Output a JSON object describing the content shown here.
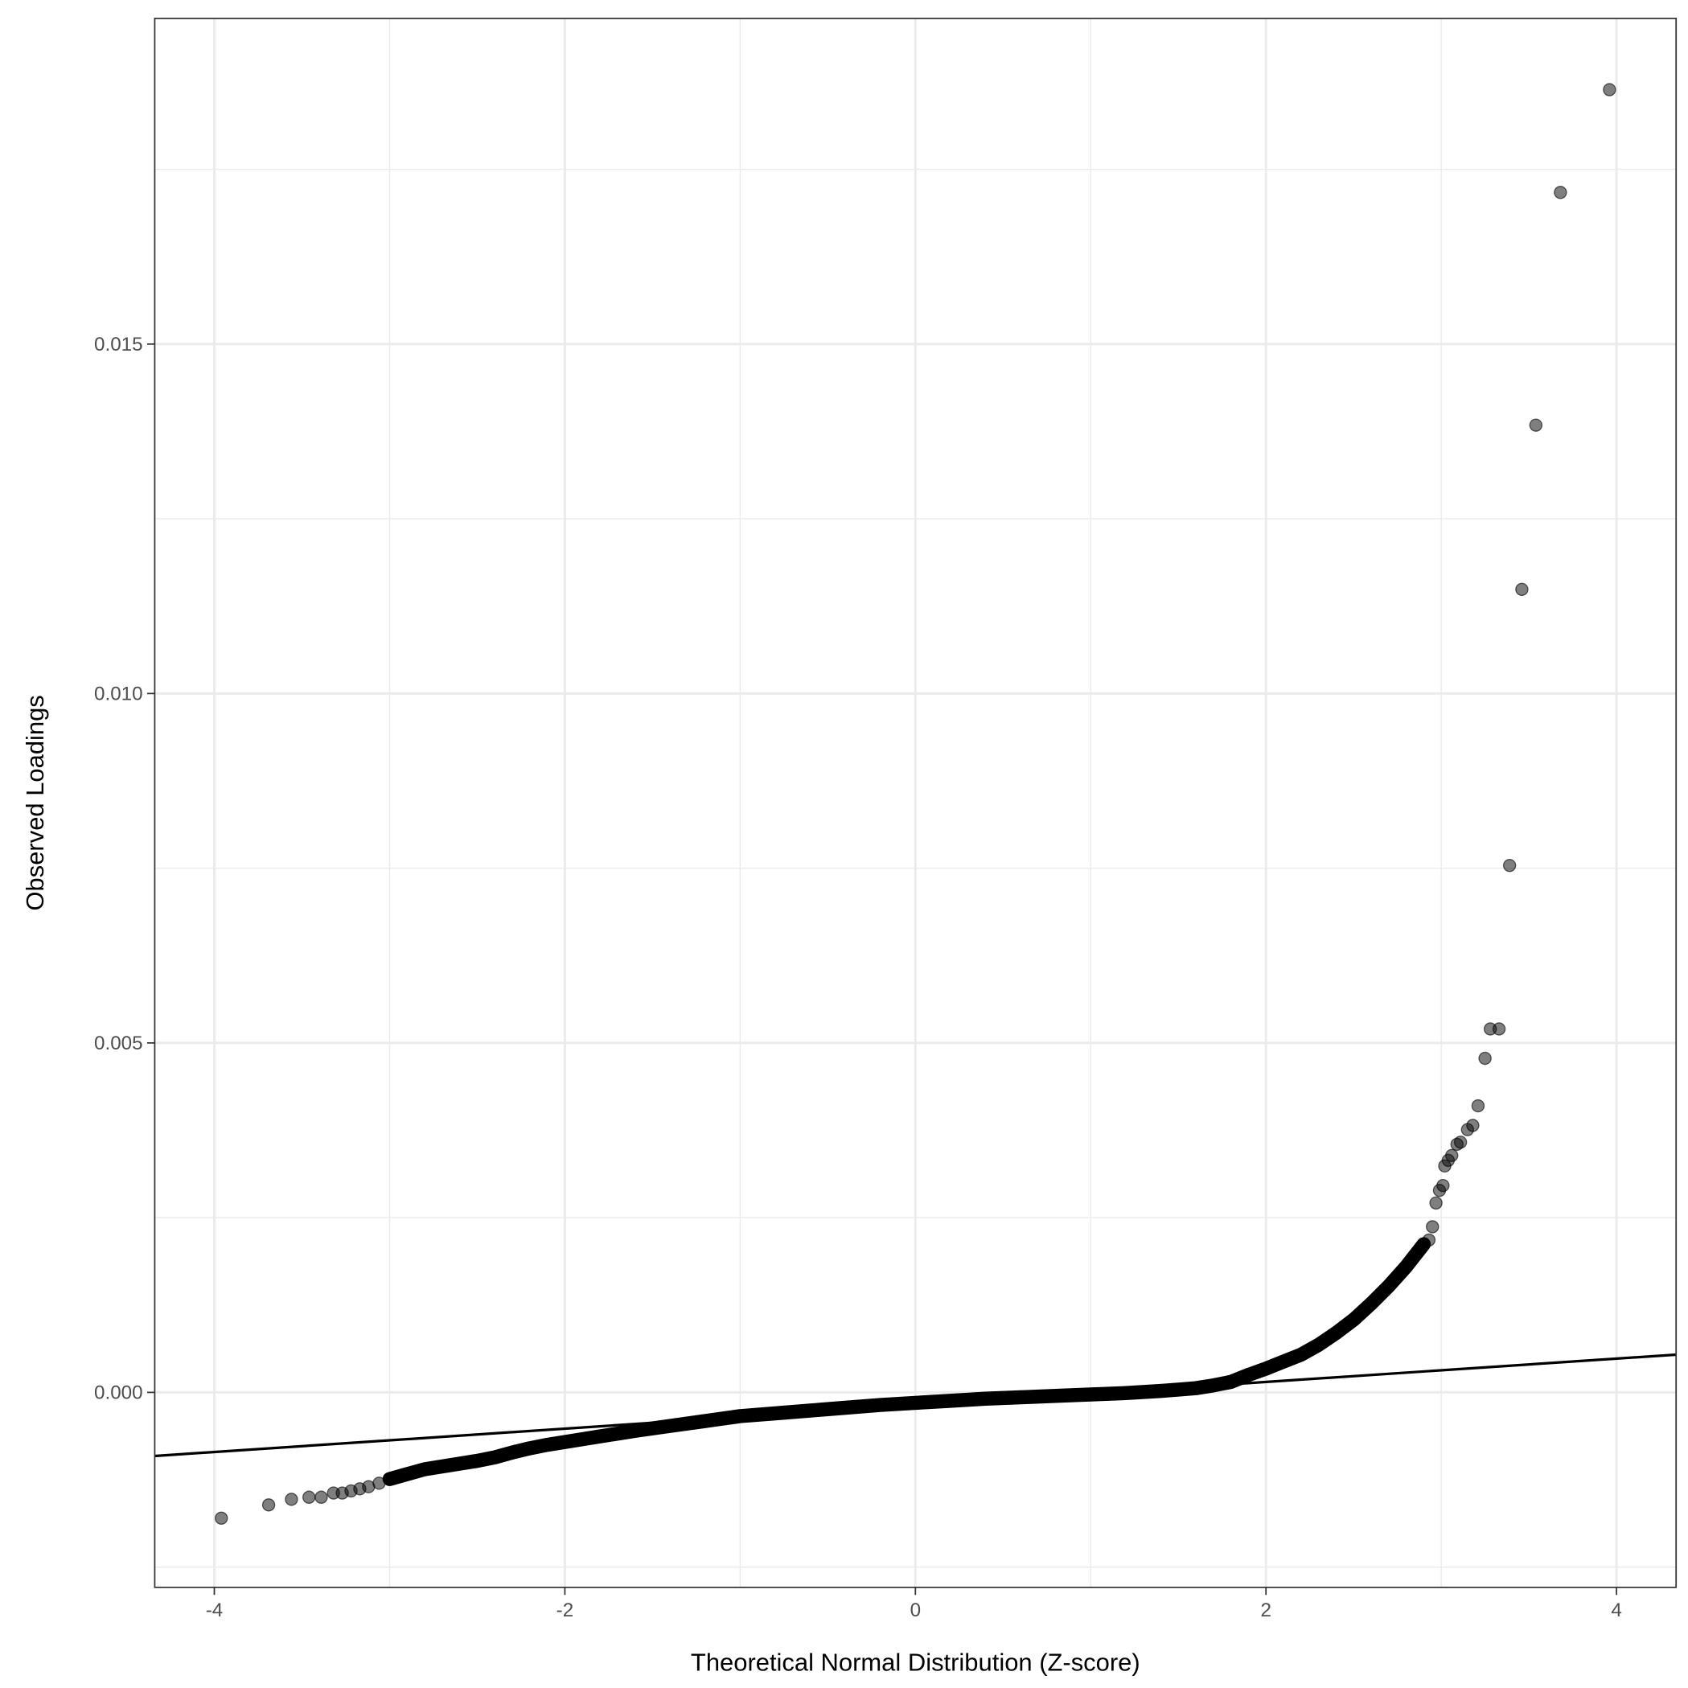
{
  "chart_data": {
    "type": "scatter",
    "title": "",
    "xlabel": "Theoretical Normal Distribution (Z-score)",
    "ylabel": "Observed Loadings",
    "xlim": [
      -4.34,
      4.34
    ],
    "ylim": [
      -0.00279,
      0.01966
    ],
    "grid": true,
    "theme": "black-and-white panel with light gray major and minor gridlines",
    "x_ticks": [
      -4,
      -2,
      0,
      2,
      4
    ],
    "x_tick_labels": [
      "-4",
      "-2",
      "0",
      "2",
      "4"
    ],
    "y_ticks": [
      0,
      0.005,
      0.01,
      0.015
    ],
    "y_tick_labels": [
      "0.000",
      "0.005",
      "0.010",
      "0.015"
    ],
    "point_color": "#000000",
    "point_alpha": 0.5,
    "line_color": "#000000",
    "reference_line": {
      "intercept": -0.000185,
      "slope": 0.000167
    },
    "points": [
      [
        -3.96,
        -0.0018
      ],
      [
        -3.69,
        -0.00161
      ],
      [
        -3.56,
        -0.00153
      ],
      [
        -3.46,
        -0.0015
      ],
      [
        -3.39,
        -0.0015
      ],
      [
        -3.32,
        -0.00144
      ],
      [
        -3.27,
        -0.00144
      ],
      [
        -3.22,
        -0.00141
      ],
      [
        -3.17,
        -0.00138
      ],
      [
        -3.12,
        -0.00135
      ],
      [
        -3.06,
        -0.0013
      ],
      [
        -3.0,
        -0.00124
      ],
      [
        -2.9,
        -0.00117
      ],
      [
        -2.8,
        -0.0011
      ],
      [
        -2.7,
        -0.00106
      ],
      [
        -2.6,
        -0.00102
      ],
      [
        -2.5,
        -0.00098
      ],
      [
        -2.4,
        -0.00093
      ],
      [
        -2.3,
        -0.00086
      ],
      [
        -2.2,
        -0.0008
      ],
      [
        -2.1,
        -0.00075
      ],
      [
        -2.0,
        -0.00071
      ],
      [
        -1.8,
        -0.00063
      ],
      [
        -1.6,
        -0.00055
      ],
      [
        -1.4,
        -0.00048
      ],
      [
        -1.2,
        -0.00041
      ],
      [
        -1.0,
        -0.00034
      ],
      [
        -0.8,
        -0.0003
      ],
      [
        -0.6,
        -0.00026
      ],
      [
        -0.4,
        -0.00022
      ],
      [
        -0.2,
        -0.00018
      ],
      [
        0.0,
        -0.00015
      ],
      [
        0.2,
        -0.00012
      ],
      [
        0.4,
        -9e-05
      ],
      [
        0.6,
        -7e-05
      ],
      [
        0.8,
        -5e-05
      ],
      [
        1.0,
        -3e-05
      ],
      [
        1.2,
        -1e-05
      ],
      [
        1.4,
        2e-05
      ],
      [
        1.5,
        4e-05
      ],
      [
        1.6,
        6e-05
      ],
      [
        1.7,
        0.0001
      ],
      [
        1.8,
        0.00015
      ],
      [
        1.9,
        0.00025
      ],
      [
        2.0,
        0.00034
      ],
      [
        2.1,
        0.00044
      ],
      [
        2.2,
        0.00054
      ],
      [
        2.3,
        0.00068
      ],
      [
        2.4,
        0.00085
      ],
      [
        2.5,
        0.00104
      ],
      [
        2.6,
        0.00127
      ],
      [
        2.7,
        0.00152
      ],
      [
        2.8,
        0.0018
      ],
      [
        2.85,
        0.00196
      ],
      [
        2.9,
        0.00212
      ],
      [
        2.93,
        0.00218
      ],
      [
        2.95,
        0.00237
      ],
      [
        2.97,
        0.00271
      ],
      [
        2.99,
        0.00289
      ],
      [
        3.01,
        0.00296
      ],
      [
        3.02,
        0.00324
      ],
      [
        3.04,
        0.00332
      ],
      [
        3.06,
        0.00339
      ],
      [
        3.09,
        0.00355
      ],
      [
        3.11,
        0.00358
      ],
      [
        3.15,
        0.00376
      ],
      [
        3.18,
        0.00382
      ],
      [
        3.21,
        0.0041
      ],
      [
        3.25,
        0.00478
      ],
      [
        3.28,
        0.0052
      ],
      [
        3.33,
        0.0052
      ],
      [
        3.39,
        0.00754
      ],
      [
        3.46,
        0.01149
      ],
      [
        3.54,
        0.01384
      ],
      [
        3.68,
        0.01717
      ],
      [
        3.96,
        0.01864
      ]
    ]
  }
}
